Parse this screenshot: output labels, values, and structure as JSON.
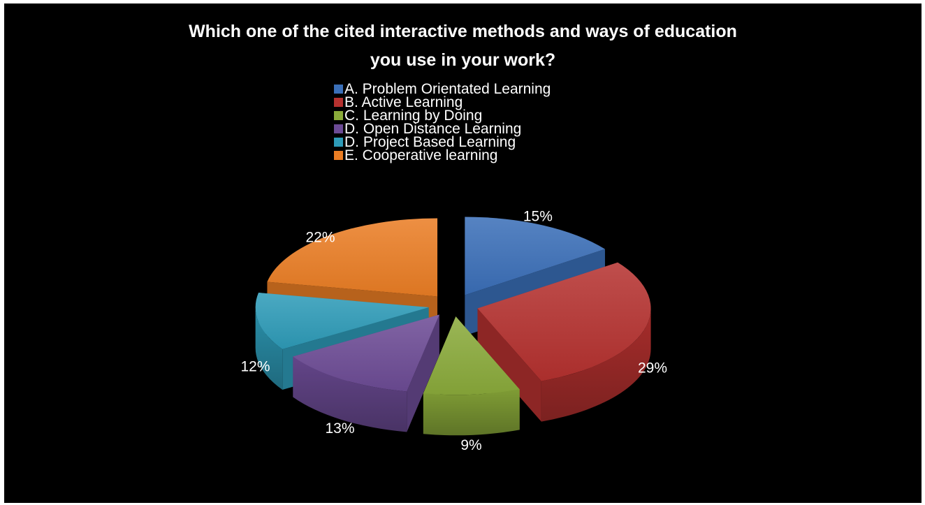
{
  "chart_data": {
    "type": "pie",
    "style": "3d-exploded",
    "title_lines": [
      "Which one of the cited interactive methods and ways of education",
      "you use in your work?"
    ],
    "legend_position": "top",
    "slices": [
      {
        "label": "A. Problem Orientated Learning",
        "value": 15,
        "value_label": "15%",
        "color": "#3a6fb8"
      },
      {
        "label": "B. Active Learning",
        "value": 29,
        "value_label": "29%",
        "color": "#b5312f"
      },
      {
        "label": "C. Learning by Doing",
        "value": 9,
        "value_label": "9%",
        "color": "#8aaa3a"
      },
      {
        "label": "D. Open Distance Learning",
        "value": 13,
        "value_label": "13%",
        "color": "#6c4b95"
      },
      {
        "label": "D. Project Based Learning",
        "value": 12,
        "value_label": "12%",
        "color": "#2e9bb8"
      },
      {
        "label": "E. Cooperative learning",
        "value": 22,
        "value_label": "22%",
        "color": "#ea7d24"
      }
    ]
  },
  "colors": {
    "background": "#000000",
    "text": "#ffffff"
  }
}
